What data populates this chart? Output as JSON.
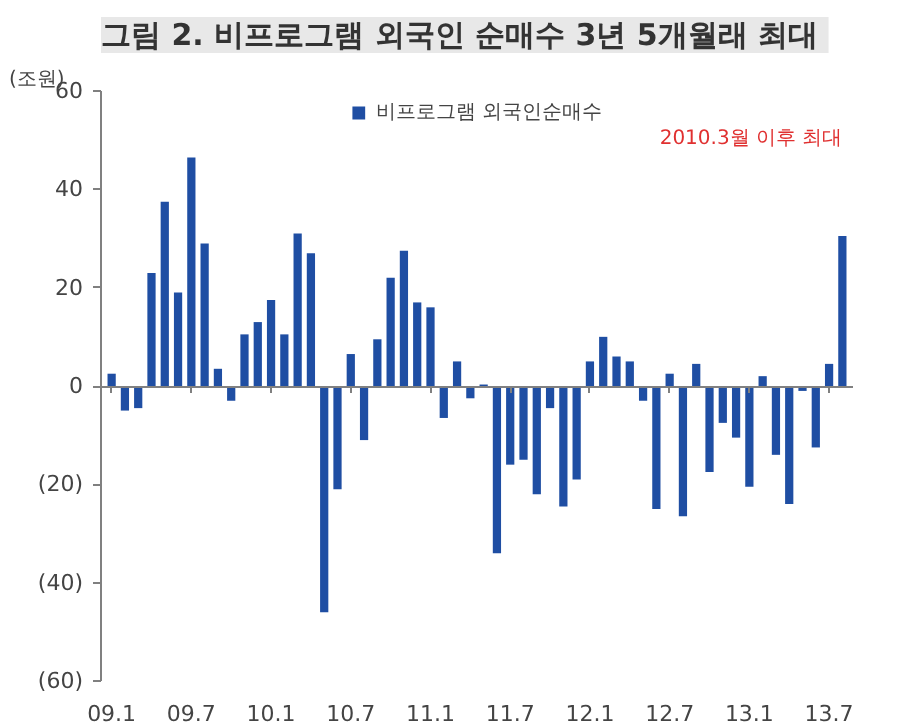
{
  "chart_data": {
    "type": "bar",
    "title": "그림 2.  비프로그램 외국인 순매수 3년 5개월래 최대",
    "ylabel": "(조원)",
    "categories": [
      "09.1",
      null,
      null,
      null,
      null,
      null,
      "09.7",
      null,
      null,
      null,
      null,
      null,
      "10.1",
      null,
      null,
      null,
      null,
      null,
      "10.7",
      null,
      null,
      null,
      null,
      null,
      "11.1",
      null,
      null,
      null,
      null,
      null,
      "11.7",
      null,
      null,
      null,
      null,
      null,
      "12.1",
      null,
      null,
      null,
      null,
      null,
      "12.7",
      null,
      null,
      null,
      null,
      null,
      "13.1",
      null,
      null,
      null,
      null,
      null,
      "13.7",
      null
    ],
    "series": [
      {
        "name": "비프로그램 외국인순매수",
        "color": "#1f4ea3",
        "values": [
          2.5,
          -5,
          -4.5,
          23,
          37.5,
          19,
          46.5,
          29,
          3.5,
          -3,
          10.5,
          13,
          17.5,
          10.5,
          31,
          27,
          -46,
          -21,
          6.5,
          -11,
          9.5,
          22,
          27.5,
          17,
          16,
          -6.5,
          5,
          -2.5,
          0.3,
          -34,
          -16,
          -15,
          -22,
          -4.5,
          -24.5,
          -19,
          5,
          10,
          6,
          5,
          -3,
          -25,
          2.5,
          -26.5,
          4.5,
          -17.5,
          -7.5,
          -10.5,
          -20.5,
          2,
          -14,
          -24,
          -1,
          -12.5,
          4.5,
          30.5
        ]
      }
    ],
    "ylim": [
      -60,
      60
    ],
    "yticks": [
      {
        "value": -60,
        "label": "(60)"
      },
      {
        "value": -40,
        "label": "(40)"
      },
      {
        "value": -20,
        "label": "(20)"
      },
      0,
      20,
      40,
      60
    ],
    "annotations": [
      "2010.3월 이후 최대"
    ],
    "legend": "top"
  }
}
